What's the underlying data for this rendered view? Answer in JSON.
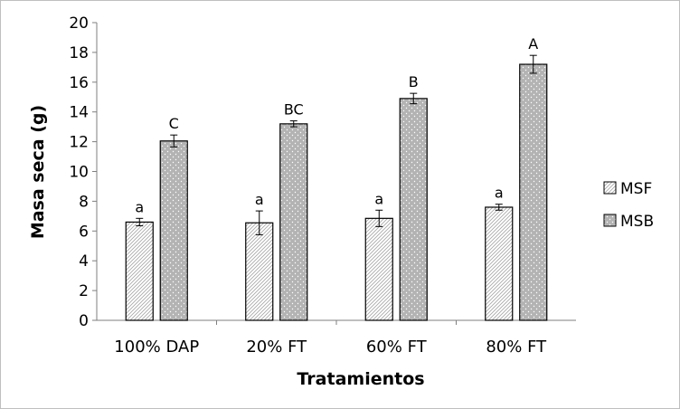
{
  "chart_data": {
    "type": "bar",
    "categories": [
      "100% DAP",
      "20% FT",
      "60% FT",
      "80% FT"
    ],
    "series": [
      {
        "name": "MSF",
        "values": [
          6.6,
          6.55,
          6.85,
          7.6
        ],
        "errors": [
          0.25,
          0.8,
          0.55,
          0.2
        ],
        "labels": [
          "a",
          "a",
          "a",
          "a"
        ],
        "color": "#ffffff",
        "pattern": "diagonal-hatch"
      },
      {
        "name": "MSB",
        "values": [
          12.05,
          13.2,
          14.9,
          17.2
        ],
        "errors": [
          0.4,
          0.2,
          0.35,
          0.6
        ],
        "labels": [
          "C",
          "BC",
          "B",
          "A"
        ],
        "color": "#b3b3b3",
        "pattern": "dots"
      }
    ],
    "xlabel": "Tratamientos",
    "ylabel": "Masa seca (g)",
    "ylim": [
      0,
      20
    ],
    "yticks": [
      0,
      2,
      4,
      6,
      8,
      10,
      12,
      14,
      16,
      18,
      20
    ],
    "grid": false,
    "legend": "right"
  }
}
